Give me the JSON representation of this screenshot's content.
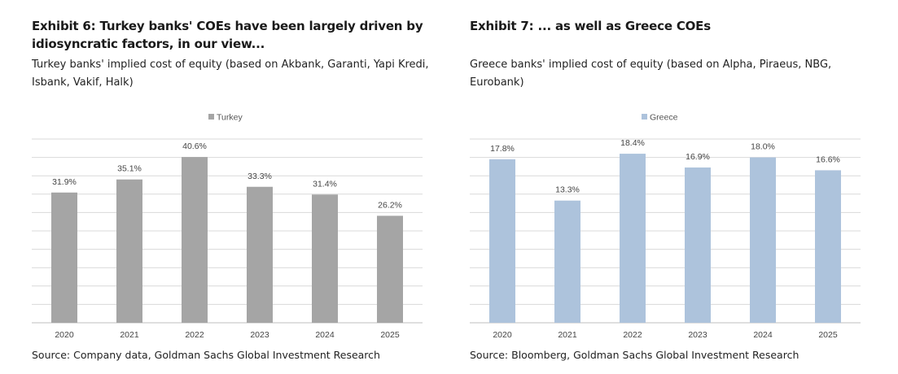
{
  "exhibits": [
    {
      "title": "Exhibit 6: Turkey banks' COEs have been largely driven by idiosyncratic factors, in our view...",
      "subtitle": "Turkey banks' implied cost of equity (based on Akbank, Garanti, Yapi Kredi, Isbank, Vakif, Halk)",
      "source": "Source: Company data, Goldman Sachs Global Investment Research"
    },
    {
      "title": "Exhibit 7: ... as well as Greece COEs",
      "subtitle": "Greece banks' implied cost of equity (based on Alpha, Piraeus, NBG, Eurobank)",
      "source": "Source: Bloomberg, Goldman Sachs Global Investment Research"
    }
  ],
  "chart_data": [
    {
      "type": "bar",
      "categories": [
        "2020",
        "2021",
        "2022",
        "2023",
        "2024",
        "2025"
      ],
      "series": [
        {
          "name": "Turkey",
          "values": [
            31.9,
            35.1,
            40.6,
            33.3,
            31.4,
            26.2
          ],
          "labels": [
            "31.9%",
            "35.1%",
            "40.6%",
            "33.3%",
            "31.4%",
            "26.2%"
          ],
          "color": "#a5a5a5"
        }
      ],
      "ylim": [
        0,
        45
      ],
      "grid": true,
      "legend": "top-center"
    },
    {
      "type": "bar",
      "categories": [
        "2020",
        "2021",
        "2022",
        "2023",
        "2024",
        "2025"
      ],
      "series": [
        {
          "name": "Greece",
          "values": [
            17.8,
            13.3,
            18.4,
            16.9,
            18.0,
            16.6
          ],
          "labels": [
            "17.8%",
            "13.3%",
            "18.4%",
            "16.9%",
            "18.0%",
            "16.6%"
          ],
          "color": "#adc3dc"
        }
      ],
      "ylim": [
        0,
        20
      ],
      "grid": true,
      "legend": "top-center"
    }
  ]
}
